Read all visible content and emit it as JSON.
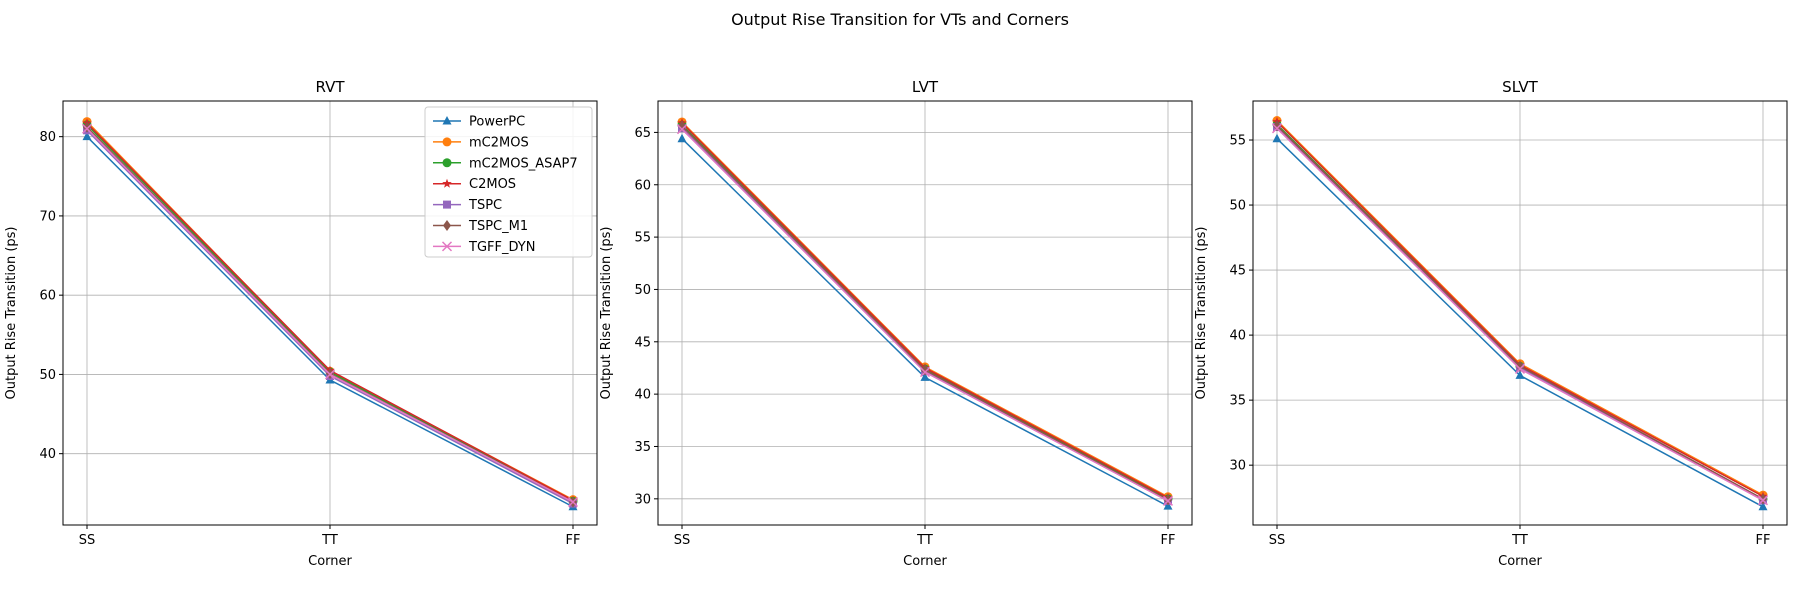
{
  "figure": {
    "title": "Output Rise Transition for VTs and Corners"
  },
  "series_styles": [
    {
      "name": "PowerPC",
      "color": "#1f77b4",
      "marker": "triangle"
    },
    {
      "name": "mC2MOS",
      "color": "#ff7f0e",
      "marker": "circle"
    },
    {
      "name": "mC2MOS_ASAP7",
      "color": "#2ca02c",
      "marker": "circle"
    },
    {
      "name": "C2MOS",
      "color": "#d62728",
      "marker": "star"
    },
    {
      "name": "TSPC",
      "color": "#9467bd",
      "marker": "square"
    },
    {
      "name": "TSPC_M1",
      "color": "#8c564b",
      "marker": "diamond"
    },
    {
      "name": "TGFF_DYN",
      "color": "#e377c2",
      "marker": "x"
    }
  ],
  "chart_data": [
    {
      "type": "line",
      "title": "RVT",
      "xlabel": "Corner",
      "ylabel": "Output Rise Transition (ps)",
      "categories": [
        "SS",
        "TT",
        "FF"
      ],
      "ylim": [
        31,
        84.5
      ],
      "yticks": [
        40,
        50,
        60,
        70,
        80
      ],
      "grid": true,
      "legend": "top-right",
      "series": [
        {
          "name": "PowerPC",
          "values": [
            80.0,
            49.3,
            33.3
          ]
        },
        {
          "name": "mC2MOS",
          "values": [
            81.9,
            50.4,
            34.2
          ]
        },
        {
          "name": "mC2MOS_ASAP7",
          "values": [
            81.5,
            50.3,
            34.0
          ]
        },
        {
          "name": "C2MOS",
          "values": [
            81.7,
            50.5,
            34.1
          ]
        },
        {
          "name": "TSPC",
          "values": [
            80.8,
            49.8,
            33.7
          ]
        },
        {
          "name": "TSPC_M1",
          "values": [
            81.2,
            50.1,
            33.9
          ]
        },
        {
          "name": "TGFF_DYN",
          "values": [
            81.0,
            50.0,
            33.9
          ]
        }
      ]
    },
    {
      "type": "line",
      "title": "LVT",
      "xlabel": "Corner",
      "ylabel": "Output Rise Transition (ps)",
      "categories": [
        "SS",
        "TT",
        "FF"
      ],
      "ylim": [
        27.5,
        68
      ],
      "yticks": [
        30,
        35,
        40,
        45,
        50,
        55,
        60,
        65
      ],
      "grid": true,
      "series": [
        {
          "name": "PowerPC",
          "values": [
            64.4,
            41.6,
            29.3
          ]
        },
        {
          "name": "mC2MOS",
          "values": [
            66.0,
            42.6,
            30.2
          ]
        },
        {
          "name": "mC2MOS_ASAP7",
          "values": [
            65.7,
            42.4,
            30.0
          ]
        },
        {
          "name": "C2MOS",
          "values": [
            65.9,
            42.5,
            30.1
          ]
        },
        {
          "name": "TSPC",
          "values": [
            65.4,
            42.2,
            29.8
          ]
        },
        {
          "name": "TSPC_M1",
          "values": [
            65.6,
            42.3,
            29.9
          ]
        },
        {
          "name": "TGFF_DYN",
          "values": [
            65.3,
            42.1,
            29.8
          ]
        }
      ]
    },
    {
      "type": "line",
      "title": "SLVT",
      "xlabel": "Corner",
      "ylabel": "Output Rise Transition (ps)",
      "categories": [
        "SS",
        "TT",
        "FF"
      ],
      "ylim": [
        25.4,
        58
      ],
      "yticks": [
        30,
        35,
        40,
        45,
        50,
        55
      ],
      "grid": true,
      "series": [
        {
          "name": "PowerPC",
          "values": [
            55.1,
            36.9,
            26.8
          ]
        },
        {
          "name": "mC2MOS",
          "values": [
            56.5,
            37.8,
            27.7
          ]
        },
        {
          "name": "mC2MOS_ASAP7",
          "values": [
            56.2,
            37.6,
            27.4
          ]
        },
        {
          "name": "C2MOS",
          "values": [
            56.4,
            37.7,
            27.6
          ]
        },
        {
          "name": "TSPC",
          "values": [
            56.0,
            37.5,
            27.3
          ]
        },
        {
          "name": "TSPC_M1",
          "values": [
            56.1,
            37.6,
            27.4
          ]
        },
        {
          "name": "TGFF_DYN",
          "values": [
            55.9,
            37.4,
            27.3
          ]
        }
      ]
    }
  ]
}
